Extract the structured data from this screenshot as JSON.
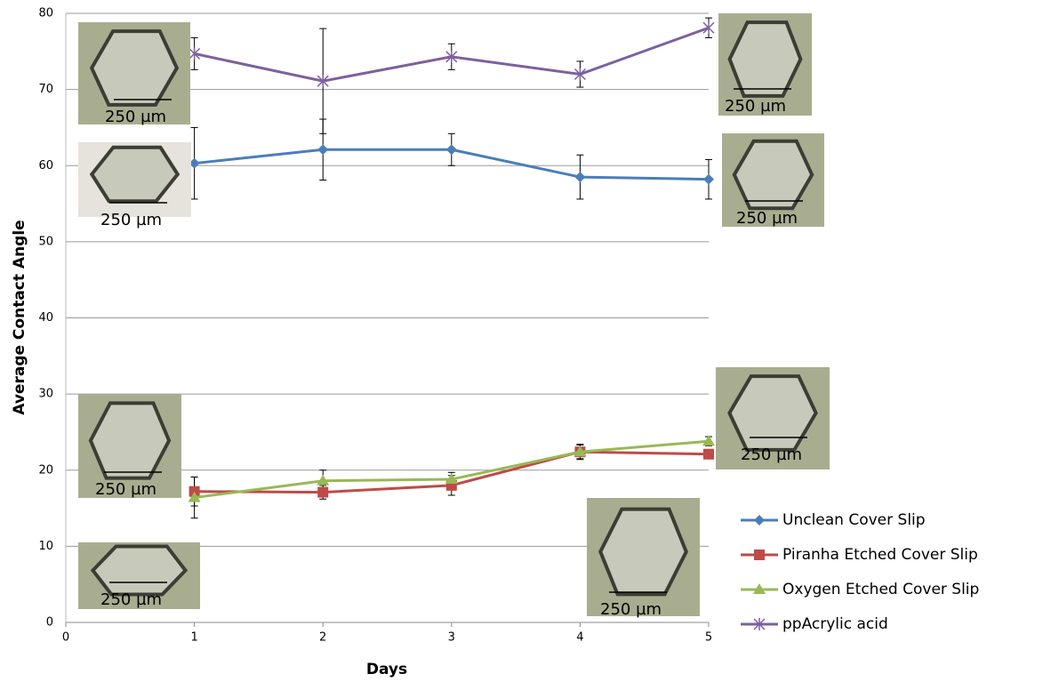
{
  "chart_data": {
    "type": "line",
    "x_label": "Days",
    "y_label": "Average Contact Angle",
    "x": [
      1,
      2,
      3,
      4,
      5
    ],
    "xlim": [
      0,
      5
    ],
    "xticks": [
      0,
      1,
      2,
      3,
      4,
      5
    ],
    "ylim": [
      0,
      80
    ],
    "yticks": [
      0,
      10,
      20,
      30,
      40,
      50,
      60,
      70,
      80
    ],
    "grid": true,
    "legend": "lower right",
    "series": [
      {
        "name": "Unclean Cover Slip",
        "color": "#4a7ebb",
        "marker": "diamond",
        "values": [
          60.3,
          62.1,
          62.1,
          58.5,
          58.2
        ],
        "errors": [
          4.7,
          4.0,
          2.1,
          2.9,
          2.6
        ]
      },
      {
        "name": "Piranha Etched Cover Slip",
        "color": "#be4b48",
        "marker": "square",
        "values": [
          17.2,
          17.1,
          18.0,
          22.4,
          22.1
        ],
        "errors": [
          1.9,
          0.9,
          1.3,
          0.9,
          0.6
        ]
      },
      {
        "name": "Oxygen Etched Cover Slip",
        "color": "#98b954",
        "marker": "triangle",
        "values": [
          16.4,
          18.6,
          18.8,
          22.4,
          23.8
        ],
        "errors": [
          2.7,
          1.4,
          0.9,
          1.0,
          0.6
        ]
      },
      {
        "name": "ppAcrylic acid",
        "color": "#7d60a0",
        "marker": "star",
        "values": [
          74.7,
          71.1,
          74.3,
          72.0,
          78.1
        ],
        "errors": [
          2.1,
          6.9,
          1.7,
          1.7,
          1.3
        ]
      }
    ],
    "insets": [
      "250 µm",
      "250 µm",
      "250 µm",
      "250 µm",
      "250 µm",
      "250 µm",
      "250 µm",
      "250 µm"
    ]
  }
}
